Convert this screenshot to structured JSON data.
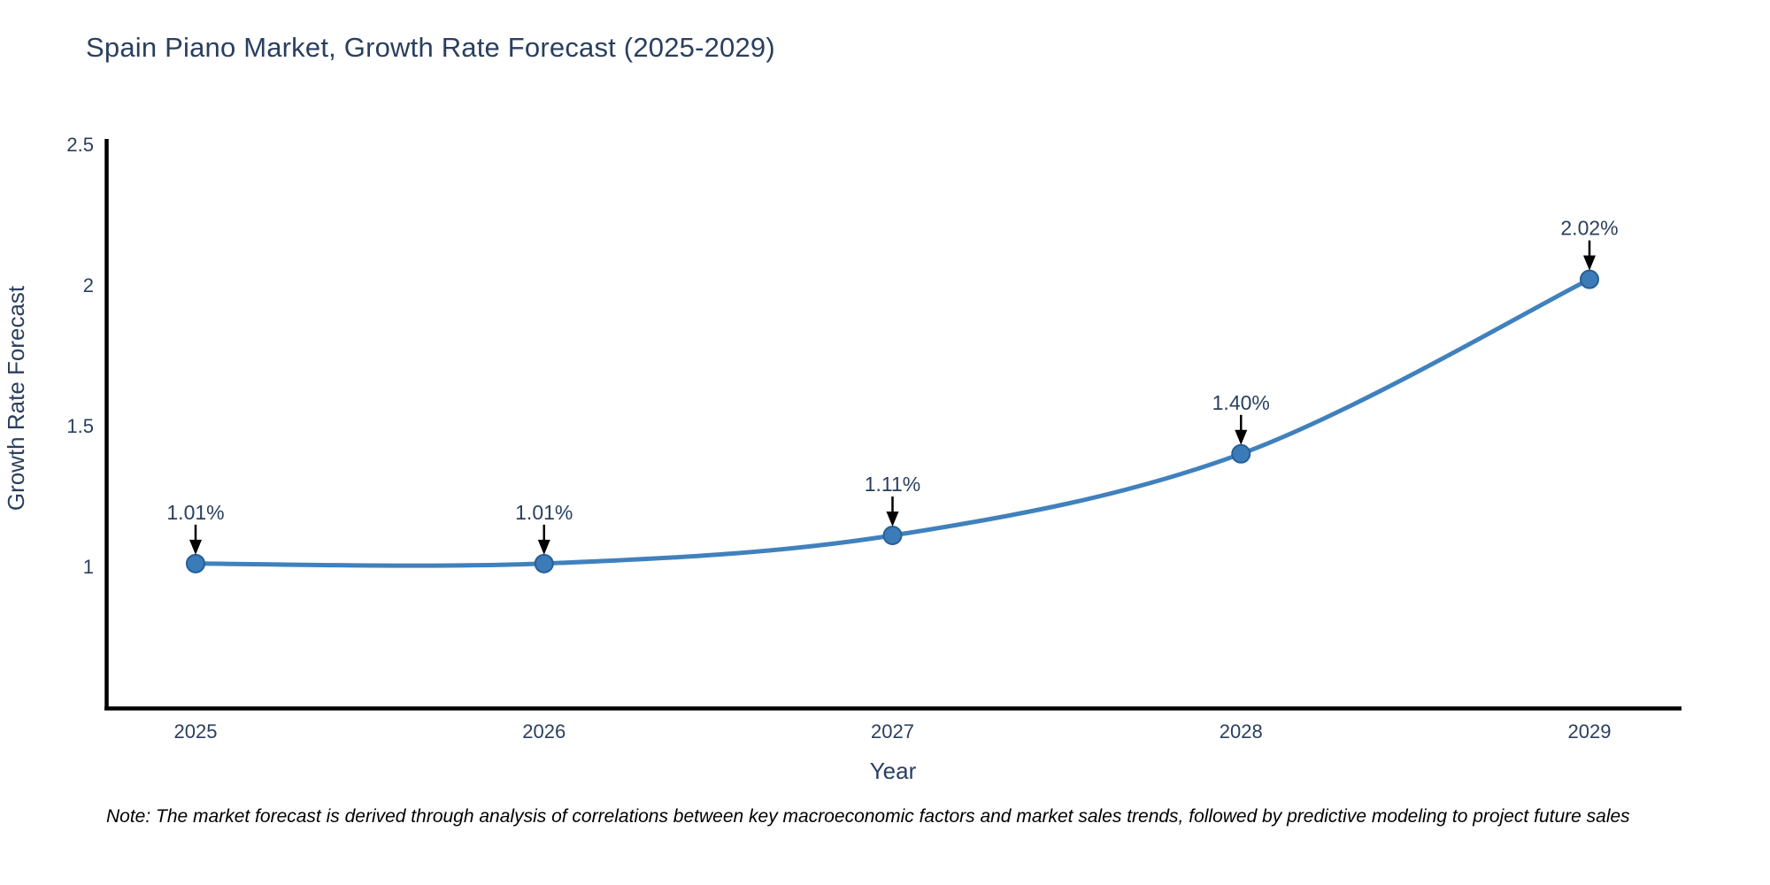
{
  "title": "Spain Piano Market, Growth Rate Forecast (2025-2029)",
  "note": "Note: The market forecast is derived through analysis of correlations between key macroeconomic factors and market sales trends, followed by predictive modeling to project future sales",
  "chart_data": {
    "type": "line",
    "title": "Spain Piano Market, Growth Rate Forecast (2025-2029)",
    "xlabel": "Year",
    "ylabel": "Growth Rate Forecast",
    "categories": [
      2025,
      2026,
      2027,
      2028,
      2029
    ],
    "x_tick_labels": [
      "2025",
      "2026",
      "2027",
      "2028",
      "2029"
    ],
    "series": [
      {
        "name": "Growth Rate Forecast",
        "values": [
          1.01,
          1.01,
          1.11,
          1.4,
          2.02
        ],
        "point_labels": [
          "1.01%",
          "1.01%",
          "1.11%",
          "1.40%",
          "2.02%"
        ]
      }
    ],
    "ylim": [
      0.5,
      2.5
    ],
    "yticks": [
      2.5,
      2,
      1.5,
      1
    ],
    "ytick_labels": [
      "2.5",
      "2",
      "1.5",
      "1"
    ],
    "grid": false,
    "legend": "none",
    "curve": "spline",
    "markers": true,
    "annotation_arrows": true,
    "colors": {
      "line": "#4081bd",
      "marker_fill": "#3b7bb8",
      "marker_edge": "#275f97",
      "arrow": "#000000",
      "text": "#2a3f5f",
      "axis_line": "#000000",
      "note_text": "#000000",
      "background": "#ffffff"
    }
  }
}
